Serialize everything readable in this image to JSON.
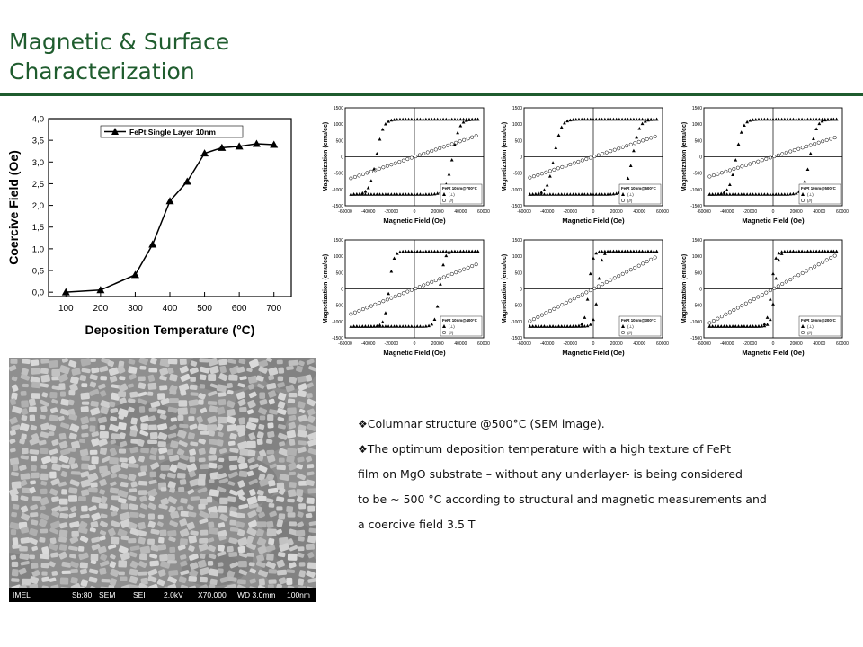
{
  "slide": {
    "title_line1": "Magnetic & Surface",
    "title_line2": "Characterization",
    "accent_color": "#1f5c2e"
  },
  "chart_data": [
    {
      "type": "line",
      "legend": "FePt Single Layer 10nm",
      "legend_position": "top-left",
      "xlabel": "Deposition Temperature (°C)",
      "ylabel": "Coercive Field (Oe)",
      "x": [
        100,
        200,
        300,
        350,
        400,
        450,
        500,
        550,
        600,
        650,
        700
      ],
      "y": [
        0.0,
        0.05,
        0.4,
        1.1,
        2.1,
        2.55,
        3.2,
        3.33,
        3.36,
        3.42,
        3.4
      ],
      "xlim": [
        50,
        750
      ],
      "ylim": [
        -0.1,
        4.0
      ],
      "xticks": [
        "100",
        "200",
        "300",
        "400",
        "500",
        "600",
        "700"
      ],
      "yticks": [
        "0,0",
        "0,5",
        "1,0",
        "1,5",
        "2,0",
        "2,5",
        "3,0",
        "3,5",
        "4,0"
      ],
      "marker": "triangle-filled"
    },
    {
      "type": "line",
      "legend": [
        "FePt 10nm@700°C",
        "(⊥)",
        "(//)"
      ],
      "xlabel": "Magnetic Field (Oe)",
      "ylabel": "Magnetization (emu/cc)",
      "xticks": [
        "-60000",
        "-40000",
        "-20000",
        "0",
        "20000",
        "40000",
        "60000"
      ],
      "yticks": [
        "-1500",
        "-1000",
        "-500",
        "0",
        "500",
        "1000",
        "1500"
      ],
      "xlim": [
        -60000,
        60000
      ],
      "ylim": [
        -1500,
        1500
      ],
      "coercivity": 33000,
      "ms": 1150,
      "inplane_slope_at_50000": 600
    },
    {
      "type": "line",
      "legend": [
        "FePt 10nm@600°C",
        "(⊥)",
        "(//)"
      ],
      "xlabel": "Magnetic Field (Oe)",
      "ylabel": "Magnetization (emu/cc)",
      "xticks": [
        "-60000",
        "-40000",
        "-20000",
        "0",
        "20000",
        "40000",
        "60000"
      ],
      "yticks": [
        "-1500",
        "-1000",
        "-500",
        "0",
        "500",
        "1000",
        "1500"
      ],
      "xlim": [
        -60000,
        60000
      ],
      "ylim": [
        -1500,
        1500
      ],
      "coercivity": 34000,
      "ms": 1150,
      "inplane_slope_at_50000": 580
    },
    {
      "type": "line",
      "legend": [
        "FePt 10nm@500°C",
        "(⊥)",
        "(//)"
      ],
      "xlabel": "Magnetic Field (Oe)",
      "ylabel": "Magnetization (emu/cc)",
      "xticks": [
        "-60000",
        "-40000",
        "-20000",
        "0",
        "20000",
        "40000",
        "60000"
      ],
      "yticks": [
        "-1500",
        "-1000",
        "-500",
        "0",
        "500",
        "1000",
        "1500"
      ],
      "xlim": [
        -60000,
        60000
      ],
      "ylim": [
        -1500,
        1500
      ],
      "coercivity": 32000,
      "ms": 1150,
      "inplane_slope_at_50000": 550
    },
    {
      "type": "line",
      "legend": [
        "FePt 10nm@400°C",
        "(⊥)",
        "(//)"
      ],
      "xlabel": "Magnetic Field (Oe)",
      "ylabel": "Magnetization (emu/cc)",
      "xticks": [
        "-60000",
        "-40000",
        "-20000",
        "0",
        "20000",
        "40000",
        "60000"
      ],
      "yticks": [
        "-1500",
        "-1000",
        "-500",
        "0",
        "500",
        "1000",
        "1500"
      ],
      "xlim": [
        -60000,
        60000
      ],
      "ylim": [
        -1500,
        1500
      ],
      "coercivity": 22000,
      "ms": 1150,
      "inplane_slope_at_50000": 700
    },
    {
      "type": "line",
      "legend": [
        "FePt 10nm@300°C",
        "(⊥)",
        "(//)"
      ],
      "xlabel": "Magnetic Field (Oe)",
      "ylabel": "Magnetization (emu/cc)",
      "xticks": [
        "-60000",
        "-40000",
        "-20000",
        "0",
        "20000",
        "40000",
        "60000"
      ],
      "yticks": [
        "-1500",
        "-1000",
        "-500",
        "0",
        "500",
        "1000",
        "1500"
      ],
      "xlim": [
        -60000,
        60000
      ],
      "ylim": [
        -1500,
        1500
      ],
      "coercivity": 4000,
      "ms": 1150,
      "inplane_slope_at_50000": 900
    },
    {
      "type": "line",
      "legend": [
        "FePt 10nm@200°C",
        "(⊥)",
        "(//)"
      ],
      "xlabel": "Magnetic Field (Oe)",
      "ylabel": "Magnetization (emu/cc)",
      "xticks": [
        "-60000",
        "-40000",
        "-20000",
        "0",
        "20000",
        "40000",
        "60000"
      ],
      "yticks": [
        "-1500",
        "-1000",
        "-500",
        "0",
        "500",
        "1000",
        "1500"
      ],
      "xlim": [
        -60000,
        60000
      ],
      "ylim": [
        -1500,
        1500
      ],
      "coercivity": 1500,
      "ms": 1150,
      "inplane_slope_at_50000": 950
    }
  ],
  "sem": {
    "bar_labels": [
      "IMEL",
      "Sb:80",
      "SEM",
      "SEI",
      "2.0kV",
      "X70,000",
      "WD 3.0mm",
      "100nm"
    ]
  },
  "bullets": [
    "Columnar structure @500°C (SEM image).",
    "The optimum deposition temperature with a high texture of FePt",
    "film on MgO substrate – without any underlayer- is being considered",
    "to be ~ 500 °C according to structural and magnetic measurements and",
    "a coercive field 3.5 T"
  ],
  "bullet_glyph": "❖"
}
